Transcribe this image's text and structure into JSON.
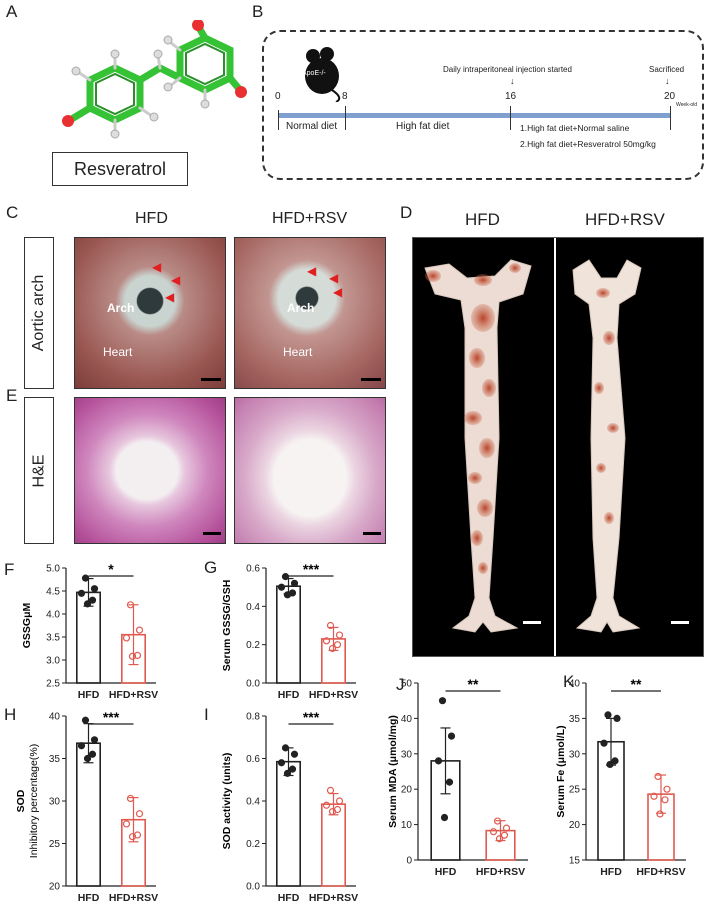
{
  "panels": {
    "a": "A",
    "b": "B",
    "c": "C",
    "d": "D",
    "e": "E",
    "f": "F",
    "g": "G",
    "h": "H",
    "i": "I",
    "j": "J",
    "k": "K"
  },
  "panel_a": {
    "compound": "Resveratrol"
  },
  "panel_b": {
    "mouse_label": "ApoE-/-",
    "ticks": [
      "0",
      "8",
      "16",
      "20"
    ],
    "unit": "Week-old",
    "injection_label": "Daily intraperitoneal injection started",
    "sacrificed_label": "Sacrificed",
    "phase1": "Normal diet",
    "phase2": "High fat diet",
    "group1": "1.High fat diet+Normal saline",
    "group2": "2.High fat diet+Resveratrol 50mg/kg"
  },
  "panel_c": {
    "col1": "HFD",
    "col2": "HFD+RSV",
    "row_label": "Aortic  arch",
    "arch": "Arch",
    "heart": "Heart"
  },
  "panel_d": {
    "col1": "HFD",
    "col2": "HFD+RSV"
  },
  "panel_e": {
    "row_label": "H&E"
  },
  "colors": {
    "hfd": "#222222",
    "rsv": "#e05a4f",
    "timeline": "#7f9fcf"
  },
  "chart_data": [
    {
      "id": "F",
      "type": "bar",
      "categories": [
        "HFD",
        "HFD+RSV"
      ],
      "values": [
        4.47,
        3.55
      ],
      "sd": [
        0.3,
        0.65
      ],
      "points": [
        [
          4.78,
          4.55,
          4.45,
          4.3,
          4.22
        ],
        [
          4.2,
          3.65,
          3.48,
          3.1,
          3.08
        ]
      ],
      "ylabel": "GSSGμM",
      "ylim": [
        2.5,
        5.0
      ],
      "yticks": [
        "2.5",
        "3.0",
        "3.5",
        "4.0",
        "4.5",
        "5.0"
      ],
      "significance": "*"
    },
    {
      "id": "G",
      "type": "bar",
      "categories": [
        "HFD",
        "HFD+RSV"
      ],
      "values": [
        0.505,
        0.23
      ],
      "sd": [
        0.04,
        0.06
      ],
      "points": [
        [
          0.555,
          0.52,
          0.5,
          0.47,
          0.46
        ],
        [
          0.3,
          0.25,
          0.22,
          0.2,
          0.18
        ]
      ],
      "ylabel": "Serum GSSG/GSH",
      "ylim": [
        0.0,
        0.6
      ],
      "yticks": [
        "0.0",
        "0.2",
        "0.4",
        "0.6"
      ],
      "significance": "***"
    },
    {
      "id": "H",
      "type": "bar",
      "categories": [
        "HFD",
        "HFD+RSV"
      ],
      "values": [
        36.8,
        27.8
      ],
      "sd": [
        2.3,
        2.6
      ],
      "points": [
        [
          39.5,
          37.2,
          36.5,
          35.5,
          35.0
        ],
        [
          30.3,
          28.5,
          27.3,
          26.0,
          25.8
        ]
      ],
      "ylabel": "SOD Inhibitory percentage(%)",
      "ylim": [
        20,
        40
      ],
      "yticks": [
        "20",
        "25",
        "30",
        "35",
        "40"
      ],
      "significance": "***"
    },
    {
      "id": "I",
      "type": "bar",
      "categories": [
        "HFD",
        "HFD+RSV"
      ],
      "values": [
        0.585,
        0.385
      ],
      "sd": [
        0.065,
        0.05
      ],
      "points": [
        [
          0.65,
          0.62,
          0.58,
          0.55,
          0.53
        ],
        [
          0.45,
          0.4,
          0.38,
          0.36,
          0.35
        ]
      ],
      "ylabel": "SOD activity (units)",
      "ylim": [
        0.0,
        0.8
      ],
      "yticks": [
        "0.0",
        "0.2",
        "0.4",
        "0.6",
        "0.8"
      ],
      "significance": "***"
    },
    {
      "id": "J",
      "type": "bar",
      "categories": [
        "HFD",
        "HFD+RSV"
      ],
      "values": [
        28.0,
        8.3
      ],
      "sd": [
        9.3,
        2.8
      ],
      "points": [
        [
          45.0,
          35.0,
          28.0,
          22.0,
          12.0
        ],
        [
          11.0,
          9.0,
          8.0,
          7.0,
          6.0
        ]
      ],
      "ylabel": "Serum MDA (μmol/mg)",
      "ylim": [
        0,
        50
      ],
      "yticks": [
        "0",
        "10",
        "20",
        "30",
        "40",
        "50"
      ],
      "significance": "**"
    },
    {
      "id": "K",
      "type": "bar",
      "categories": [
        "HFD",
        "HFD+RSV"
      ],
      "values": [
        31.7,
        24.3
      ],
      "sd": [
        3.3,
        2.7
      ],
      "points": [
        [
          35.5,
          35.0,
          31.5,
          29.0,
          28.5
        ],
        [
          26.8,
          25.0,
          24.0,
          23.5,
          21.5
        ]
      ],
      "ylabel": "Serum Fe (μmol/L)",
      "ylim": [
        15,
        40
      ],
      "yticks": [
        "15",
        "20",
        "25",
        "30",
        "35",
        "40"
      ],
      "significance": "**"
    }
  ]
}
